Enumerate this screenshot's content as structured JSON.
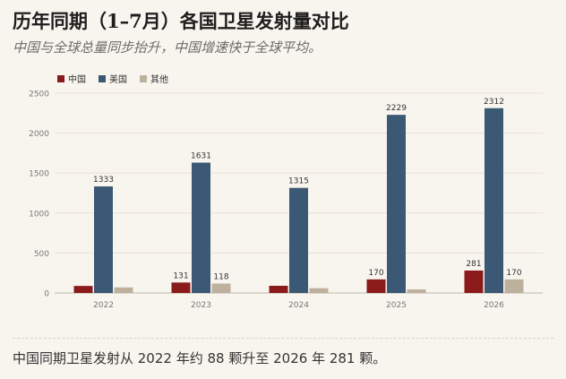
{
  "header": {
    "title": "历年同期（1–7月）各国卫星发射量对比",
    "subtitle": "中国与全球总量同步抬升，中国增速快于全球平均。"
  },
  "footer": {
    "note": "中国同期卫星发射从 2022 年约 88 颗升至 2026 年 281 颗。"
  },
  "chart_data": {
    "type": "bar",
    "title": "历年同期（1–7月）各国卫星发射量对比",
    "categories": [
      "2022",
      "2023",
      "2024",
      "2025",
      "2026"
    ],
    "series": [
      {
        "name": "中国",
        "color": "#8b1a1a",
        "values": [
          88,
          131,
          90,
          170,
          281
        ],
        "labels": [
          "",
          "131",
          "",
          "170",
          "281"
        ]
      },
      {
        "name": "美国",
        "color": "#3b5875",
        "values": [
          1333,
          1631,
          1315,
          2229,
          2312
        ],
        "labels": [
          "1333",
          "1631",
          "1315",
          "2229",
          "2312"
        ]
      },
      {
        "name": "其他",
        "color": "#bdb09c",
        "values": [
          70,
          118,
          60,
          45,
          170
        ],
        "labels": [
          "",
          "118",
          "",
          "",
          "170"
        ]
      }
    ],
    "ylim": [
      0,
      2500
    ],
    "yticks": [
      0,
      500,
      1000,
      1500,
      2000,
      2500
    ],
    "grid": true,
    "legend": "top-left"
  }
}
